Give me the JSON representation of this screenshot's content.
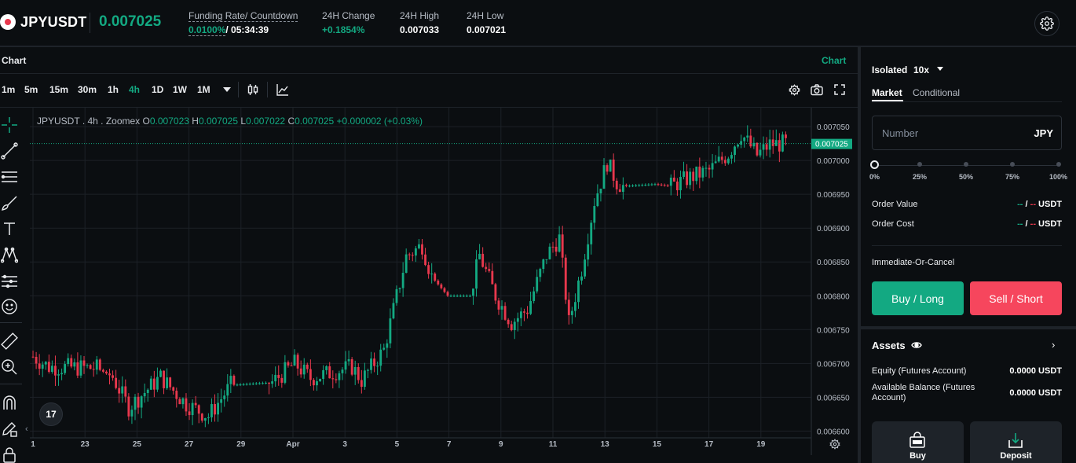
{
  "header": {
    "symbol": "JPYUSDT",
    "last_price": "0.007025",
    "funding_label": "Funding Rate/ Countdown",
    "funding_rate": "0.0100%",
    "countdown": "/ 05:34:39",
    "change_label": "24H Change",
    "change_value": "+0.1854%",
    "high_label": "24H High",
    "high_value": "0.007033",
    "low_label": "24H Low",
    "low_value": "0.007021",
    "settings_icon": "gear-icon"
  },
  "chart_panel": {
    "title": "Chart",
    "tab": "Chart",
    "timeframes": [
      "1m",
      "5m",
      "15m",
      "30m",
      "1h",
      "4h",
      "1D",
      "1W",
      "1M"
    ],
    "active_timeframe": "4h",
    "ohlc": {
      "name": "JPYUSDT",
      "interval": ". 4h . Zoomex",
      "o_label": "O",
      "o": "0.007023",
      "h_label": "H",
      "h": "0.007025",
      "l_label": "L",
      "l": "0.007022",
      "c_label": "C",
      "c": "0.007025",
      "change": "+0.000002 (+0.03%)"
    },
    "tv_logo": "17",
    "colors": {
      "up": "#13a982",
      "down": "#e8384d",
      "grid": "#1c2127",
      "axis_text": "#b7bdc6"
    }
  },
  "chart_data": {
    "type": "candlestick",
    "title": "",
    "xlabel": "",
    "ylabel": "",
    "x_ticks": [
      "1",
      "23",
      "25",
      "27",
      "29",
      "Apr",
      "3",
      "5",
      "7",
      "9",
      "11",
      "13",
      "15",
      "17",
      "19"
    ],
    "y_ticks": [
      "0.007050",
      "0.007000",
      "0.006950",
      "0.006900",
      "0.006850",
      "0.006800",
      "0.006750",
      "0.006700",
      "0.006650",
      "0.006600"
    ],
    "ylim": [
      0.00659,
      0.007078
    ],
    "last_price": "0.007025",
    "grid": true,
    "anchors": [
      [
        0,
        0.00671
      ],
      [
        5,
        0.006695
      ],
      [
        20,
        0.006693
      ],
      [
        25,
        0.00668
      ],
      [
        30,
        0.006635
      ],
      [
        40,
        0.00668
      ],
      [
        48,
        0.00664
      ],
      [
        55,
        0.006622
      ],
      [
        62,
        0.006668
      ],
      [
        75,
        0.006672
      ],
      [
        82,
        0.0067
      ],
      [
        87,
        0.006678
      ],
      [
        100,
        0.006695
      ],
      [
        103,
        0.006675
      ],
      [
        110,
        0.00672
      ],
      [
        117,
        0.006858
      ],
      [
        122,
        0.006875
      ],
      [
        125,
        0.006828
      ],
      [
        130,
        0.0068
      ],
      [
        137,
        0.0068
      ],
      [
        140,
        0.00686
      ],
      [
        145,
        0.0068
      ],
      [
        150,
        0.00676
      ],
      [
        155,
        0.00678
      ],
      [
        161,
        0.00686
      ],
      [
        165,
        0.006885
      ],
      [
        168,
        0.00676
      ],
      [
        172,
        0.00684
      ],
      [
        176,
        0.00694
      ],
      [
        180,
        0.006997
      ],
      [
        183,
        0.006968
      ],
      [
        185,
        0.006962
      ],
      [
        195,
        0.006965
      ],
      [
        200,
        0.006962
      ],
      [
        206,
        0.006975
      ],
      [
        212,
        0.006985
      ],
      [
        218,
        0.00701
      ],
      [
        222,
        0.00704
      ],
      [
        227,
        0.007008
      ],
      [
        231,
        0.007024
      ],
      [
        236,
        0.007025
      ]
    ]
  },
  "right_panel": {
    "margin_mode": "Isolated",
    "leverage": "10x",
    "tabs": [
      "Market",
      "Conditional"
    ],
    "number_placeholder": "Number",
    "number_unit": "JPY",
    "slider_marks": [
      "0%",
      "25%",
      "50%",
      "75%",
      "100%"
    ],
    "slider_value": 0,
    "order_value_label": "Order Value",
    "order_cost_label": "Order Cost",
    "dash_a": "--",
    "slash": "/",
    "dash_b": "--",
    "unit": "USDT",
    "ioc": "Immediate-Or-Cancel",
    "buy_label": "Buy / Long",
    "sell_label": "Sell / Short",
    "assets_title": "Assets",
    "equity_label": "Equity (Futures Account)",
    "equity_value": "0.0000 USDT",
    "available_label": "Available Balance (Futures Account)",
    "available_value": "0.0000 USDT",
    "buy_card": "Buy",
    "deposit_card": "Deposit"
  }
}
